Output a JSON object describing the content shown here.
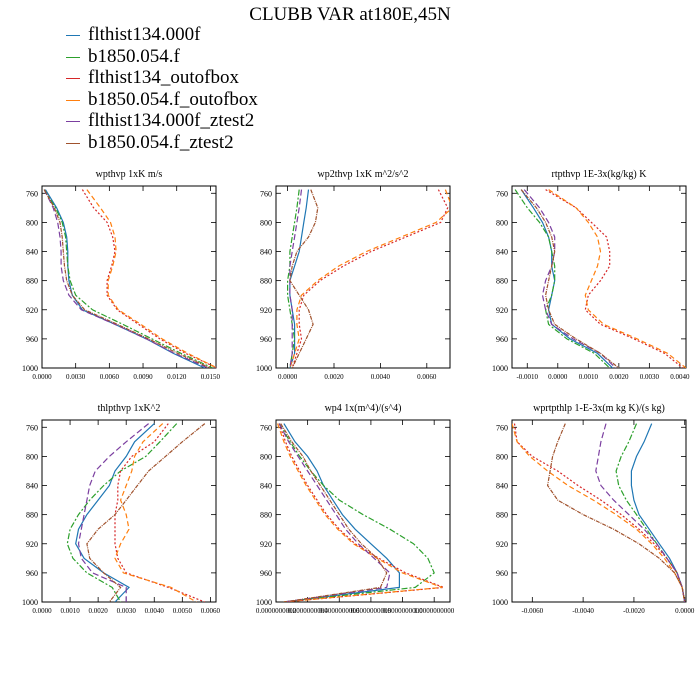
{
  "title": "CLUBB VAR at180E,45N",
  "legend": [
    {
      "label": "flthist134.000f",
      "color": "#1f77b4"
    },
    {
      "label": "b1850.054.f",
      "color": "#2ca02c"
    },
    {
      "label": "flthist134_outofbox",
      "color": "#d62728"
    },
    {
      "label": "b1850.054.f_outofbox",
      "color": "#ff7f0e"
    },
    {
      "label": "flthist134.000f_ztest2",
      "color": "#7b3fa0"
    },
    {
      "label": "b1850.054.f_ztest2",
      "color": "#a0522d"
    }
  ],
  "chart_data": [
    {
      "type": "line",
      "title": "wpthvp   1xK m/s",
      "xlim": [
        0,
        0.0155
      ],
      "ylim": [
        1000,
        750
      ],
      "xticks": [
        "0.0000",
        "0.0030",
        "0.0060",
        "0.0090",
        "0.0120",
        "0.0150"
      ],
      "xtick_values": [
        0,
        0.003,
        0.006,
        0.009,
        0.012,
        0.015
      ],
      "yticks": [
        "760",
        "800",
        "840",
        "880",
        "920",
        "960",
        "1000"
      ],
      "ytick_values": [
        760,
        800,
        840,
        880,
        920,
        960,
        1000
      ],
      "levels": [
        755,
        780,
        800,
        820,
        840,
        860,
        880,
        900,
        920,
        940,
        960,
        980,
        1000
      ],
      "series": [
        {
          "values": [
            0.0003,
            0.0013,
            0.0019,
            0.0022,
            0.0023,
            0.0023,
            0.0024,
            0.0027,
            0.0036,
            0.0065,
            0.0093,
            0.0117,
            0.0145
          ]
        },
        {
          "values": [
            0.0002,
            0.0012,
            0.0018,
            0.0021,
            0.0022,
            0.0023,
            0.0025,
            0.003,
            0.0045,
            0.0072,
            0.0098,
            0.0124,
            0.0152
          ]
        },
        {
          "values": [
            0.0036,
            0.0046,
            0.0058,
            0.0063,
            0.0065,
            0.0062,
            0.0058,
            0.0058,
            0.0067,
            0.0086,
            0.0105,
            0.0128,
            0.0156
          ]
        },
        {
          "values": [
            0.004,
            0.0052,
            0.0061,
            0.0065,
            0.0066,
            0.0063,
            0.0059,
            0.0059,
            0.0068,
            0.0088,
            0.0107,
            0.013,
            0.0156
          ]
        },
        {
          "values": [
            0.0002,
            0.001,
            0.0014,
            0.0016,
            0.0017,
            0.0017,
            0.0019,
            0.0024,
            0.0035,
            0.0065,
            0.0093,
            0.0118,
            0.0148
          ]
        },
        {
          "values": [
            0.0002,
            0.0011,
            0.0016,
            0.0018,
            0.0019,
            0.002,
            0.0022,
            0.0027,
            0.0038,
            0.0067,
            0.0095,
            0.0121,
            0.015
          ]
        }
      ]
    },
    {
      "type": "line",
      "title": "wp2thvp   1xK m^2/s^2",
      "xlim": [
        -0.0005,
        0.007
      ],
      "ylim": [
        1000,
        750
      ],
      "xticks": [
        "0.0000",
        "0.0020",
        "0.0040",
        "0.0060"
      ],
      "xtick_values": [
        0,
        0.002,
        0.004,
        0.006
      ],
      "yticks": [
        "760",
        "800",
        "840",
        "880",
        "920",
        "960",
        "1000"
      ],
      "ytick_values": [
        760,
        800,
        840,
        880,
        920,
        960,
        1000
      ],
      "levels": [
        755,
        780,
        800,
        820,
        840,
        860,
        880,
        900,
        920,
        940,
        960,
        980,
        1000
      ],
      "series": [
        {
          "values": [
            0.0009,
            0.0008,
            0.0007,
            0.0006,
            0.0005,
            0.0003,
            0.0001,
            0.0001,
            0.0002,
            0.0003,
            0.0003,
            0.0003,
            0.0001
          ]
        },
        {
          "values": [
            0.0005,
            0.0004,
            0.0003,
            0.0002,
            0.0001,
            0.0001,
            0.0,
            0.0,
            0.0001,
            0.0002,
            0.0003,
            0.0002,
            0.0001
          ]
        },
        {
          "values": [
            0.0065,
            0.0069,
            0.0066,
            0.0051,
            0.0036,
            0.0024,
            0.0014,
            0.0007,
            0.0005,
            0.0005,
            0.0006,
            0.0004,
            0.0002
          ]
        },
        {
          "values": [
            0.0068,
            0.0071,
            0.0064,
            0.0049,
            0.0034,
            0.0022,
            0.0013,
            0.0006,
            0.0004,
            0.0004,
            0.0005,
            0.0003,
            0.0001
          ]
        },
        {
          "values": [
            0.0006,
            0.0005,
            0.0004,
            0.0003,
            0.0002,
            0.0001,
            0.0001,
            0.0001,
            0.0002,
            0.0002,
            0.0002,
            0.0002,
            0.0001
          ]
        },
        {
          "values": [
            0.001,
            0.0013,
            0.0012,
            0.0009,
            0.0004,
            0.0002,
            0.0001,
            0.0005,
            0.0009,
            0.0011,
            0.0008,
            0.0005,
            0.0002
          ]
        }
      ]
    },
    {
      "type": "line",
      "title": "rtpthvp   1E-3x(kg/kg) K",
      "xlim": [
        -0.0015,
        0.0042
      ],
      "ylim": [
        1000,
        750
      ],
      "xticks": [
        "-0.0010",
        "0.0000",
        "0.0010",
        "0.0020",
        "0.0030",
        "0.0040"
      ],
      "xtick_values": [
        -0.001,
        0,
        0.001,
        0.002,
        0.003,
        0.004
      ],
      "yticks": [
        "760",
        "800",
        "840",
        "880",
        "920",
        "960",
        "1000"
      ],
      "ytick_values": [
        760,
        800,
        840,
        880,
        920,
        960,
        1000
      ],
      "levels": [
        755,
        780,
        800,
        820,
        840,
        860,
        880,
        900,
        920,
        940,
        960,
        980,
        1000
      ],
      "series": [
        {
          "values": [
            -0.0012,
            -0.0008,
            -0.0005,
            -0.0003,
            -0.0002,
            -0.0002,
            -0.0001,
            -0.0002,
            -0.0003,
            -0.0002,
            0.0004,
            0.0013,
            0.0018
          ]
        },
        {
          "values": [
            -0.0014,
            -0.001,
            -0.0006,
            -0.0003,
            -0.0002,
            -0.0001,
            -0.0001,
            -0.0002,
            -0.0004,
            -0.0003,
            0.0003,
            0.0012,
            0.0017
          ]
        },
        {
          "values": [
            -0.0004,
            0.0006,
            0.0011,
            0.0016,
            0.0017,
            0.0017,
            0.0014,
            0.001,
            0.0009,
            0.0014,
            0.0025,
            0.0035,
            0.0041
          ]
        },
        {
          "values": [
            -0.0003,
            0.0006,
            0.001,
            0.0013,
            0.0014,
            0.0013,
            0.0011,
            0.0009,
            0.001,
            0.0015,
            0.0026,
            0.0036,
            0.0042
          ]
        },
        {
          "values": [
            -0.0011,
            -0.0006,
            -0.0003,
            -0.0001,
            -0.0001,
            -0.0002,
            -0.0004,
            -0.0005,
            -0.0004,
            -0.0002,
            0.0005,
            0.0014,
            0.0019
          ]
        },
        {
          "values": [
            -0.0012,
            -0.0007,
            -0.0004,
            -0.0002,
            -0.0001,
            -0.0002,
            -0.0003,
            -0.0004,
            -0.0003,
            -0.0001,
            0.0006,
            0.0014,
            0.002
          ]
        }
      ]
    },
    {
      "type": "line",
      "title": "thlpthvp   1xK^2",
      "xlim": [
        0,
        0.0062
      ],
      "ylim": [
        1000,
        750
      ],
      "xticks": [
        "0.0000",
        "0.0010",
        "0.0020",
        "0.0030",
        "0.0040",
        "0.0050",
        "0.0060"
      ],
      "xtick_values": [
        0,
        0.001,
        0.002,
        0.003,
        0.004,
        0.005,
        0.006
      ],
      "yticks": [
        "760",
        "800",
        "840",
        "880",
        "920",
        "960",
        "1000"
      ],
      "ytick_values": [
        760,
        800,
        840,
        880,
        920,
        960,
        1000
      ],
      "levels": [
        755,
        780,
        800,
        820,
        840,
        860,
        880,
        900,
        920,
        940,
        960,
        980,
        1000
      ],
      "series": [
        {
          "values": [
            0.004,
            0.0033,
            0.003,
            0.0026,
            0.0024,
            0.002,
            0.0016,
            0.0013,
            0.0012,
            0.0015,
            0.0022,
            0.0031,
            0.0026
          ]
        },
        {
          "values": [
            0.0048,
            0.0042,
            0.0037,
            0.0028,
            0.0022,
            0.0017,
            0.0013,
            0.001,
            0.0009,
            0.0011,
            0.0016,
            0.0025,
            0.0028
          ]
        },
        {
          "values": [
            0.0045,
            0.004,
            0.0032,
            0.0028,
            0.0027,
            0.0027,
            0.0026,
            0.0026,
            0.0026,
            0.0027,
            0.003,
            0.0045,
            0.0058
          ]
        },
        {
          "values": [
            0.0043,
            0.0036,
            0.0033,
            0.0032,
            0.003,
            0.0028,
            0.003,
            0.0031,
            0.0028,
            0.0026,
            0.0029,
            0.0046,
            0.0055
          ]
        },
        {
          "values": [
            0.0038,
            0.003,
            0.0024,
            0.0019,
            0.0017,
            0.0016,
            0.0015,
            0.0014,
            0.0013,
            0.0014,
            0.0018,
            0.003,
            0.003
          ]
        },
        {
          "values": [
            0.0058,
            0.005,
            0.0044,
            0.0038,
            0.0034,
            0.003,
            0.0026,
            0.002,
            0.0016,
            0.0017,
            0.0022,
            0.0028,
            0.0024
          ]
        }
      ]
    },
    {
      "type": "line",
      "title": "wp4   1x(m^4)/(s^4)",
      "xlim": [
        0,
        1.1
      ],
      "ylim": [
        1000,
        750
      ],
      "xticks": [
        "0.0000000000",
        "0.2000000000",
        "0.4000000000",
        "0.6000000000",
        "0.8000000000",
        "1.0000000000"
      ],
      "xtick_values": [
        0,
        0.2,
        0.4,
        0.6,
        0.8,
        1.0
      ],
      "yticks": [
        "760",
        "800",
        "840",
        "880",
        "920",
        "960",
        "1000"
      ],
      "ytick_values": [
        760,
        800,
        840,
        880,
        920,
        960,
        1000
      ],
      "levels": [
        755,
        780,
        800,
        820,
        840,
        860,
        880,
        900,
        920,
        940,
        960,
        980,
        1000
      ],
      "series": [
        {
          "values": [
            0.05,
            0.12,
            0.2,
            0.26,
            0.3,
            0.36,
            0.42,
            0.5,
            0.6,
            0.7,
            0.78,
            0.78,
            0.05
          ]
        },
        {
          "values": [
            0.02,
            0.09,
            0.15,
            0.22,
            0.3,
            0.4,
            0.55,
            0.72,
            0.87,
            0.96,
            1.0,
            0.88,
            0.05
          ]
        },
        {
          "values": [
            0.02,
            0.06,
            0.1,
            0.15,
            0.2,
            0.26,
            0.32,
            0.4,
            0.5,
            0.65,
            0.82,
            1.06,
            0.05
          ]
        },
        {
          "values": [
            0.01,
            0.05,
            0.09,
            0.14,
            0.19,
            0.25,
            0.31,
            0.39,
            0.49,
            0.64,
            0.8,
            1.05,
            0.05
          ]
        },
        {
          "values": [
            0.02,
            0.08,
            0.14,
            0.2,
            0.26,
            0.32,
            0.38,
            0.44,
            0.52,
            0.62,
            0.72,
            0.7,
            0.05
          ]
        },
        {
          "values": [
            0.03,
            0.1,
            0.17,
            0.22,
            0.28,
            0.34,
            0.4,
            0.46,
            0.54,
            0.64,
            0.7,
            0.66,
            0.05
          ]
        }
      ]
    },
    {
      "type": "line",
      "title": "wprtpthlp   1-E-3x(m kg K)/(s kg)",
      "xlim": [
        -0.0068,
        5e-05
      ],
      "ylim": [
        1000,
        750
      ],
      "xticks": [
        "-0.0060",
        "-0.0040",
        "-0.0020",
        "0.0000"
      ],
      "xtick_values": [
        -0.006,
        -0.004,
        -0.002,
        0
      ],
      "yticks": [
        "760",
        "800",
        "840",
        "880",
        "920",
        "960",
        "1000"
      ],
      "ytick_values": [
        760,
        800,
        840,
        880,
        920,
        960,
        1000
      ],
      "levels": [
        755,
        780,
        800,
        820,
        840,
        860,
        880,
        900,
        920,
        940,
        960,
        980,
        1000
      ],
      "series": [
        {
          "values": [
            -0.0013,
            -0.0016,
            -0.0019,
            -0.0021,
            -0.0021,
            -0.002,
            -0.0018,
            -0.0014,
            -0.001,
            -0.0006,
            -0.0003,
            -0.0001,
            0.0
          ]
        },
        {
          "values": [
            -0.0019,
            -0.0022,
            -0.0025,
            -0.0027,
            -0.0026,
            -0.0023,
            -0.0019,
            -0.0015,
            -0.0011,
            -0.0007,
            -0.0003,
            -0.0001,
            0.0
          ]
        },
        {
          "values": [
            -0.0067,
            -0.0066,
            -0.006,
            -0.005,
            -0.0042,
            -0.0033,
            -0.0025,
            -0.0018,
            -0.0012,
            -0.0007,
            -0.0003,
            -0.0001,
            0.0
          ]
        },
        {
          "values": [
            -0.0068,
            -0.0066,
            -0.0061,
            -0.0054,
            -0.0046,
            -0.0036,
            -0.0027,
            -0.0019,
            -0.0013,
            -0.0008,
            -0.0004,
            -0.0001,
            0.0
          ]
        },
        {
          "values": [
            -0.0031,
            -0.0033,
            -0.0034,
            -0.0035,
            -0.0033,
            -0.0028,
            -0.0022,
            -0.0016,
            -0.0011,
            -0.0007,
            -0.0003,
            -0.0001,
            0.0
          ]
        },
        {
          "values": [
            -0.0047,
            -0.005,
            -0.0052,
            -0.0053,
            -0.0054,
            -0.005,
            -0.004,
            -0.0028,
            -0.0018,
            -0.001,
            -0.0004,
            -0.0001,
            0.0
          ]
        }
      ]
    }
  ]
}
